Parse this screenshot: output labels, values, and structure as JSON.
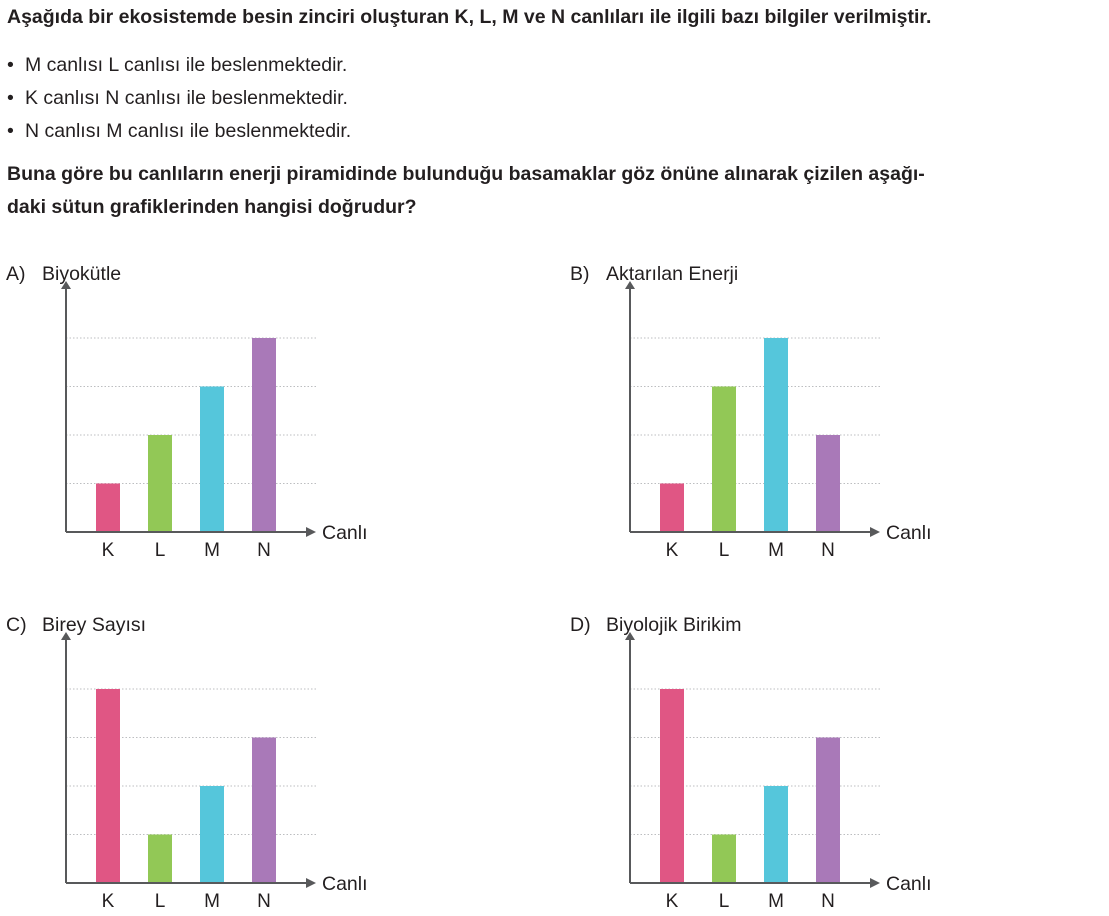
{
  "intro": "Aşağıda bir ekosistemde besin zinciri oluşturan K, L, M ve N canlıları ile ilgili bazı bilgiler verilmiştir.",
  "facts": [
    "M canlısı L canlısı ile beslenmektedir.",
    "K canlısı N canlısı ile beslenmektedir.",
    "N canlısı M canlısı ile beslenmektedir."
  ],
  "bullet": "•",
  "question_lines": [
    "Buna göre bu canlıların enerji piramidinde bulunduğu basamaklar göz önüne alınarak çizilen aşağı-",
    "daki sütun grafiklerinden hangisi doğrudur?"
  ],
  "colors": {
    "K": "#e05684",
    "L": "#92c856",
    "M": "#55c6db",
    "N": "#a979b8",
    "axis": "#58595b",
    "grid": "#bcbec0"
  },
  "chart_data": [
    {
      "option": "A)",
      "type": "bar",
      "ylabel": "Biyokütle",
      "xlabel": "Canlı",
      "categories": [
        "K",
        "L",
        "M",
        "N"
      ],
      "values": [
        1,
        2,
        3,
        4
      ],
      "ylim": [
        0,
        4
      ],
      "grid": true
    },
    {
      "option": "B)",
      "type": "bar",
      "ylabel": "Aktarılan Enerji",
      "xlabel": "Canlı",
      "categories": [
        "K",
        "L",
        "M",
        "N"
      ],
      "values": [
        1,
        3,
        4,
        2
      ],
      "ylim": [
        0,
        4
      ],
      "grid": true
    },
    {
      "option": "C)",
      "type": "bar",
      "ylabel": "Birey Sayısı",
      "xlabel": "Canlı",
      "categories": [
        "K",
        "L",
        "M",
        "N"
      ],
      "values": [
        4,
        1,
        2,
        3
      ],
      "ylim": [
        0,
        4
      ],
      "grid": true
    },
    {
      "option": "D)",
      "type": "bar",
      "ylabel": "Biyolojik Birikim",
      "xlabel": "Canlı",
      "categories": [
        "K",
        "L",
        "M",
        "N"
      ],
      "values": [
        4,
        1,
        2,
        3
      ],
      "ylim": [
        0,
        4
      ],
      "grid": true
    }
  ]
}
